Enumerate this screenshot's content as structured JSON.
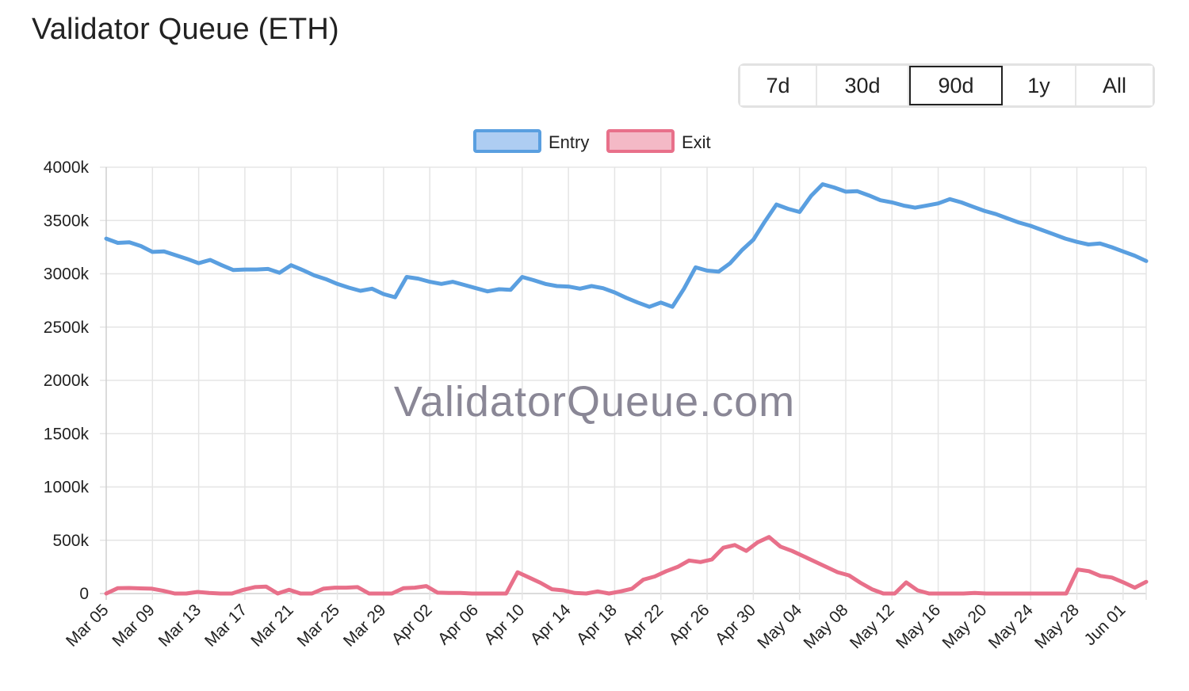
{
  "page": {
    "title": "Validator Queue (ETH)"
  },
  "range_selector": {
    "options": [
      "7d",
      "30d",
      "90d",
      "1y",
      "All"
    ],
    "active": "90d"
  },
  "watermark": "ValidatorQueue.com",
  "colors": {
    "entry": "#5a9fe0",
    "entry_fill": "#aecdf2",
    "exit": "#e8708a",
    "exit_fill": "#f4b9c6",
    "grid": "#e5e5e5",
    "axis": "#cfcfcf"
  },
  "chart_data": {
    "type": "line",
    "title": "",
    "legend": "top",
    "grid": true,
    "y_tick_labels": [
      "0",
      "500k",
      "1000k",
      "1500k",
      "2000k",
      "2500k",
      "3000k",
      "3500k",
      "4000k"
    ],
    "ylim": [
      0,
      4000000
    ],
    "x_tick_labels": [
      "Mar 05",
      "Mar 09",
      "Mar 13",
      "Mar 17",
      "Mar 21",
      "Mar 25",
      "Mar 29",
      "Apr 02",
      "Apr 06",
      "Apr 10",
      "Apr 14",
      "Apr 18",
      "Apr 22",
      "Apr 26",
      "Apr 30",
      "May 04",
      "May 08",
      "May 12",
      "May 16",
      "May 20",
      "May 24",
      "May 28",
      "Jun 01"
    ],
    "x_start": "2024-03-05",
    "x_end": "2024-06-03",
    "series": [
      {
        "name": "Entry",
        "color": "#5a9fe0",
        "values": [
          3330000,
          3290000,
          3295000,
          3260000,
          3205000,
          3210000,
          3175000,
          3140000,
          3100000,
          3130000,
          3080000,
          3035000,
          3040000,
          3040000,
          3045000,
          3010000,
          3080000,
          3035000,
          2985000,
          2950000,
          2905000,
          2870000,
          2840000,
          2860000,
          2810000,
          2780000,
          2970000,
          2955000,
          2925000,
          2905000,
          2925000,
          2895000,
          2865000,
          2835000,
          2855000,
          2850000,
          2970000,
          2940000,
          2905000,
          2885000,
          2880000,
          2860000,
          2885000,
          2865000,
          2825000,
          2775000,
          2730000,
          2690000,
          2730000,
          2690000,
          2860000,
          3060000,
          3030000,
          3020000,
          3100000,
          3220000,
          3320000,
          3490000,
          3650000,
          3610000,
          3580000,
          3730000,
          3840000,
          3810000,
          3770000,
          3775000,
          3735000,
          3690000,
          3670000,
          3640000,
          3620000,
          3640000,
          3660000,
          3700000,
          3670000,
          3630000,
          3590000,
          3560000,
          3520000,
          3480000,
          3450000,
          3410000,
          3370000,
          3330000,
          3300000,
          3275000,
          3285000,
          3250000,
          3210000,
          3170000,
          3120000
        ]
      },
      {
        "name": "Exit",
        "color": "#e8708a",
        "values": [
          0,
          50000,
          52000,
          48000,
          45000,
          25000,
          0,
          0,
          15000,
          5000,
          0,
          0,
          35000,
          60000,
          65000,
          0,
          35000,
          0,
          0,
          45000,
          55000,
          55000,
          60000,
          0,
          0,
          0,
          50000,
          55000,
          70000,
          8000,
          5000,
          5000,
          0,
          0,
          0,
          0,
          200000,
          150000,
          100000,
          40000,
          30000,
          5000,
          0,
          20000,
          0,
          20000,
          45000,
          130000,
          160000,
          210000,
          250000,
          310000,
          295000,
          320000,
          430000,
          455000,
          400000,
          480000,
          530000,
          440000,
          400000,
          350000,
          300000,
          250000,
          200000,
          170000,
          100000,
          40000,
          0,
          0,
          105000,
          30000,
          0,
          0,
          0,
          0,
          5000,
          0,
          0,
          0,
          0,
          0,
          0,
          0,
          0,
          225000,
          210000,
          165000,
          150000,
          105000,
          55000,
          110000
        ]
      }
    ]
  }
}
